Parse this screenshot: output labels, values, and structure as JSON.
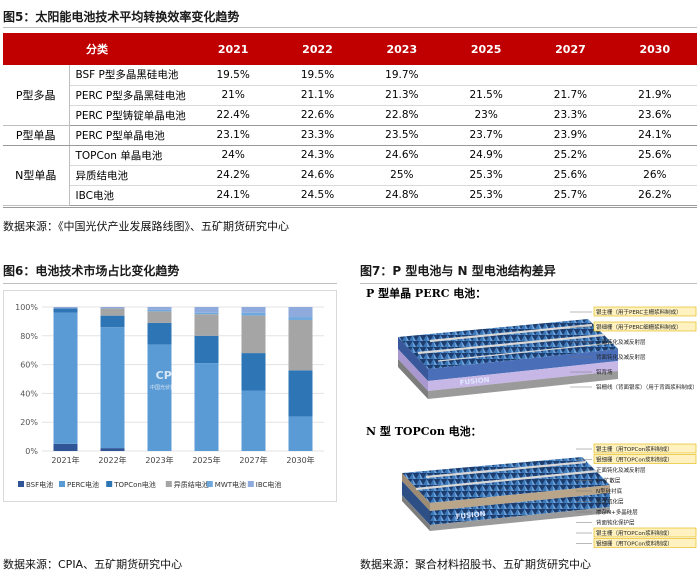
{
  "fig5": {
    "title": "图5：太阳能电池技术平均转换效率变化趋势",
    "headers": [
      "分类",
      "2021",
      "2022",
      "2023",
      "2025",
      "2027",
      "2030"
    ],
    "groups": [
      {
        "name": "P型多晶",
        "rows": [
          {
            "cell": "BSF P型多晶黑硅电池",
            "vals": [
              "19.5%",
              "19.5%",
              "19.7%",
              "",
              "",
              ""
            ]
          },
          {
            "cell": "PERC P型多晶黑硅电池",
            "vals": [
              "21%",
              "21.1%",
              "21.3%",
              "21.5%",
              "21.7%",
              "21.9%"
            ]
          },
          {
            "cell": "PERC P型铸锭单晶电池",
            "vals": [
              "22.4%",
              "22.6%",
              "22.8%",
              "23%",
              "23.3%",
              "23.6%"
            ]
          }
        ]
      },
      {
        "name": "P型单晶",
        "rows": [
          {
            "cell": "PERC P型单晶电池",
            "vals": [
              "23.1%",
              "23.3%",
              "23.5%",
              "23.7%",
              "23.9%",
              "24.1%"
            ]
          }
        ]
      },
      {
        "name": "N型单晶",
        "rows": [
          {
            "cell": "TOPCon 单晶电池",
            "vals": [
              "24%",
              "24.3%",
              "24.6%",
              "24.9%",
              "25.2%",
              "25.6%"
            ]
          },
          {
            "cell": "异质结电池",
            "vals": [
              "24.2%",
              "24.6%",
              "25%",
              "25.3%",
              "25.6%",
              "26%"
            ]
          },
          {
            "cell": "IBC电池",
            "vals": [
              "24.1%",
              "24.5%",
              "24.8%",
              "25.3%",
              "25.7%",
              "26.2%"
            ]
          }
        ]
      }
    ],
    "source": "数据来源：《中国光伏产业发展路线图》、五矿期货研究中心"
  },
  "fig6": {
    "title": "图6：电池技术市场占比变化趋势",
    "source": "数据来源：CPIA、五矿期货研究中心",
    "watermark": "CPIA",
    "watermark_sub": "中国光伏行业协会"
  },
  "fig7": {
    "title": "图7：P 型电池与 N 型电池结构差异",
    "p_title": "P 型单晶 PERC 电池：",
    "n_title": "N 型 TOPCon 电池：",
    "p_labels": [
      "银主栅（用于PERC主栅浆料制成）",
      "银细栅（用于PERC细栅浆料制成）",
      "正面钝化及减反射层",
      "背面钝化及减反射层",
      "铝背场",
      "铝栅线（背面银浆）（用于背面浆料制成）"
    ],
    "n_labels": [
      "银主栅（用TOPCon浆料制成）",
      "银细栅（用TOPCon浆料制成）",
      "正面钝化及减反射层",
      "P+扩散层",
      "N型硅衬底",
      "隧穿氧化层",
      "掺杂N+多晶硅层",
      "背面钝化保护层",
      "银主栅（用TOPCon浆料制成）",
      "银细栅（用TOPCon浆料制成）"
    ],
    "source": "数据来源：聚合材料招股书、五矿期货研究中心"
  },
  "chart_data": {
    "type": "bar",
    "stacked": true,
    "categories": [
      "2021年",
      "2022年",
      "2023年",
      "2025年",
      "2027年",
      "2030年"
    ],
    "ylim": [
      0,
      100
    ],
    "yticks": [
      "0%",
      "20%",
      "40%",
      "60%",
      "80%",
      "100%"
    ],
    "series": [
      {
        "name": "BSF电池",
        "color": "#2f5597",
        "values": [
          5,
          2,
          0,
          0,
          0,
          0
        ]
      },
      {
        "name": "PERC电池",
        "color": "#5b9bd5",
        "values": [
          91,
          84,
          74,
          61,
          42,
          24
        ]
      },
      {
        "name": "TOPCon电池",
        "color": "#2e75b6",
        "values": [
          3,
          8,
          15,
          19,
          26,
          32
        ]
      },
      {
        "name": "异质结电池",
        "color": "#a5a5a5",
        "values": [
          0,
          5,
          8,
          15,
          26,
          35
        ]
      },
      {
        "name": "MWT电池",
        "color": "#6fa8dc",
        "values": [
          0,
          0,
          1,
          1,
          2,
          2
        ]
      },
      {
        "name": "IBC电池",
        "color": "#8faadc",
        "values": [
          1,
          1,
          2,
          4,
          4,
          7
        ]
      }
    ],
    "grid": true,
    "legend": "bottom"
  }
}
